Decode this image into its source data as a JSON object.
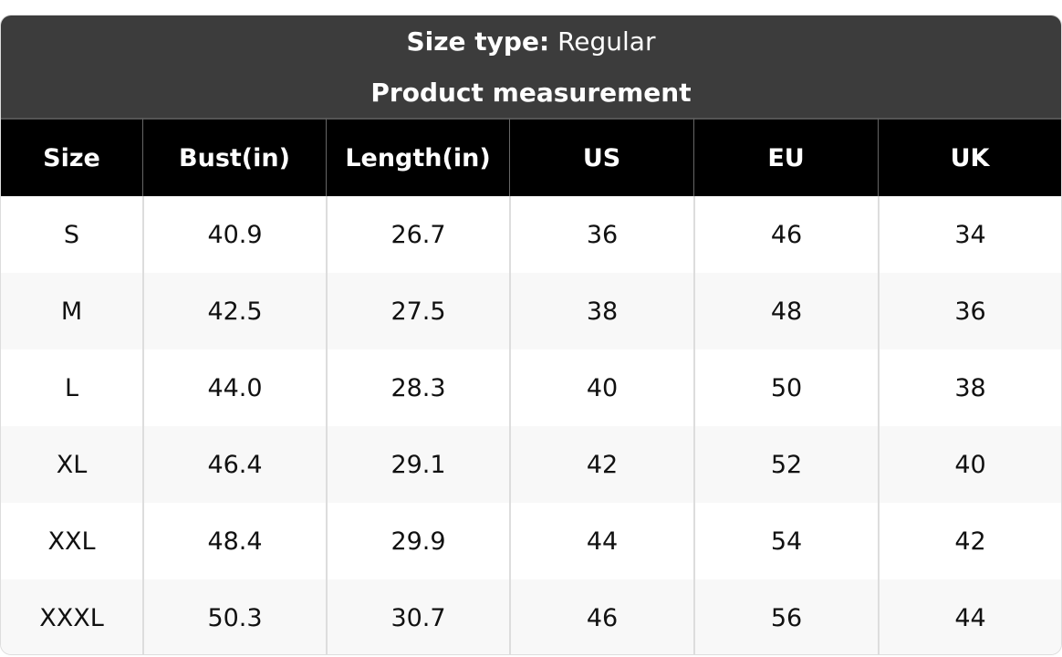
{
  "header": {
    "size_type_label": "Size type:",
    "size_type_value": "Regular",
    "subtitle": "Product measurement"
  },
  "table": {
    "columns": [
      "Size",
      "Bust(in)",
      "Length(in)",
      "US",
      "EU",
      "UK"
    ],
    "rows": [
      [
        "S",
        "40.9",
        "26.7",
        "36",
        "46",
        "34"
      ],
      [
        "M",
        "42.5",
        "27.5",
        "38",
        "48",
        "36"
      ],
      [
        "L",
        "44.0",
        "28.3",
        "40",
        "50",
        "38"
      ],
      [
        "XL",
        "46.4",
        "29.1",
        "42",
        "52",
        "40"
      ],
      [
        "XXL",
        "48.4",
        "29.9",
        "44",
        "54",
        "42"
      ],
      [
        "XXXL",
        "50.3",
        "30.7",
        "46",
        "56",
        "44"
      ]
    ]
  }
}
